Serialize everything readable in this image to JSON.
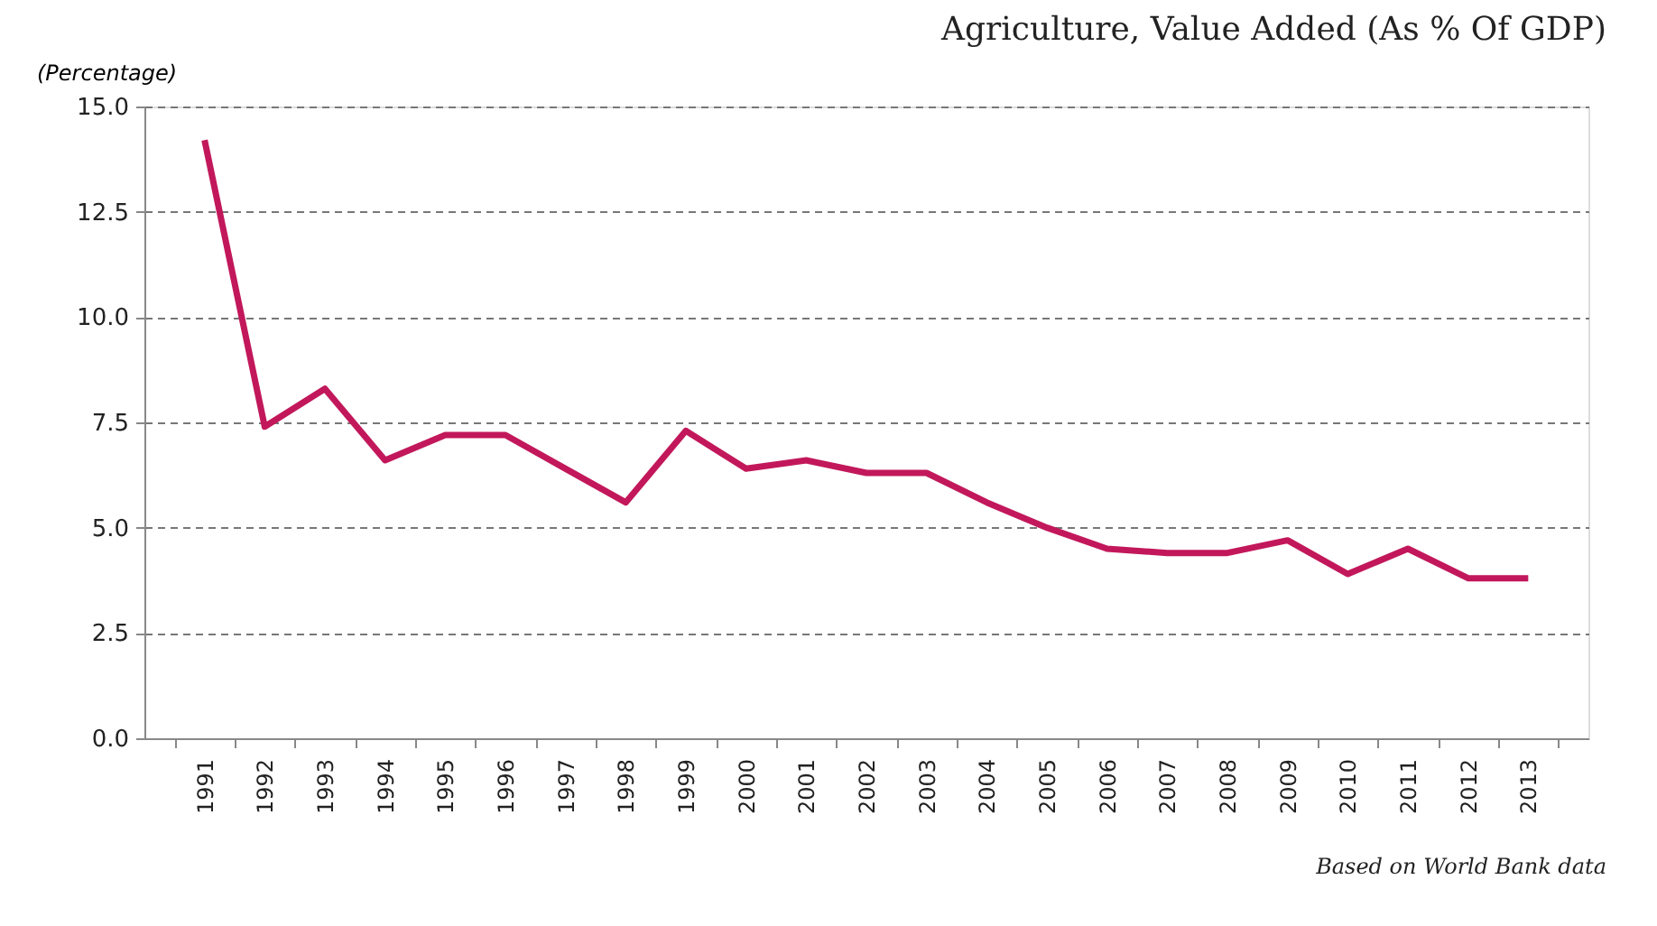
{
  "chart_data": {
    "type": "line",
    "title": "Agriculture, Value Added (As % Of GDP)",
    "ylabel": "(Percentage)",
    "annotations": [
      "Based on World Bank data"
    ],
    "categories": [
      "1991",
      "1992",
      "1993",
      "1994",
      "1995",
      "1996",
      "1997",
      "1998",
      "1999",
      "2000",
      "2001",
      "2002",
      "2003",
      "2004",
      "2005",
      "2006",
      "2007",
      "2008",
      "2009",
      "2010",
      "2011",
      "2012",
      "2013"
    ],
    "series": [
      {
        "color": "#c2185b",
        "values": [
          14.2,
          7.4,
          8.3,
          6.6,
          7.2,
          7.2,
          6.4,
          5.6,
          7.3,
          6.4,
          6.6,
          6.3,
          6.3,
          5.6,
          5.0,
          4.5,
          4.4,
          4.4,
          4.7,
          3.9,
          4.5,
          3.8,
          3.8
        ]
      }
    ],
    "ylim": [
      0,
      15
    ],
    "yticks": [
      {
        "value": 0,
        "label": "0.0"
      },
      {
        "value": 2.5,
        "label": "2.5"
      },
      {
        "value": 5,
        "label": "5.0"
      },
      {
        "value": 7.5,
        "label": "7.5"
      },
      {
        "value": 10,
        "label": "10.0"
      },
      {
        "value": 12.5,
        "label": "12.5"
      },
      {
        "value": 15,
        "label": "15.0"
      }
    ],
    "grid": "y",
    "marker": "none",
    "line_style": "solid"
  }
}
